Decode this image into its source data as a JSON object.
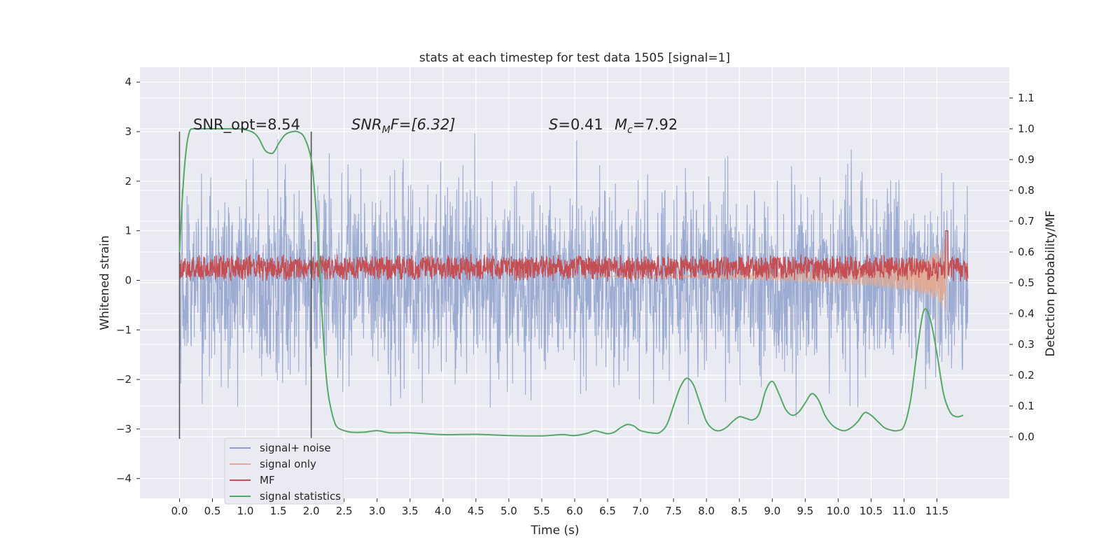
{
  "chart_data": {
    "type": "line",
    "title": "stats at each timestep for test data 1505 [signal=1]",
    "xlabel": "Time (s)",
    "ylabel": "Whitened strain",
    "ylabel_right": "Detection probability/MF",
    "xlim": [
      -0.6,
      12.6
    ],
    "ylim": [
      -4.4,
      4.3
    ],
    "ylim_right": [
      -0.2,
      1.2
    ],
    "x_ticks": [
      "0.0",
      "0.5",
      "1.0",
      "1.5",
      "2.0",
      "2.5",
      "3.0",
      "3.5",
      "4.0",
      "4.5",
      "5.0",
      "5.5",
      "6.0",
      "6.5",
      "7.0",
      "7.5",
      "8.0",
      "8.5",
      "9.0",
      "9.5",
      "10.0",
      "10.5",
      "11.0",
      "11.5"
    ],
    "y_ticks": [
      "4",
      "3",
      "2",
      "1",
      "0",
      "−1",
      "−2",
      "−3",
      "−4"
    ],
    "y_ticks_right": [
      "1.1",
      "1.0",
      "0.9",
      "0.8",
      "0.7",
      "0.6",
      "0.5",
      "0.4",
      "0.3",
      "0.2",
      "0.1",
      "0.0"
    ],
    "grid": true,
    "legend_position": "lower-left",
    "annotations": {
      "snr_opt": "SNR_opt=8.54",
      "snr_mf_base": "SNR",
      "snr_mf_sub": "M",
      "snr_mf_rest": "F=[6.32]",
      "spin_sym": "S",
      "spin_val": "=0.41",
      "mc_sym": "M",
      "mc_sub": "c",
      "mc_val": "=7.92"
    },
    "vlines_x": [
      0.0,
      2.0
    ],
    "series": [
      {
        "name": "signal+ noise",
        "color": "#8da0cb",
        "axis": "left",
        "description_range": [
          -3.0,
          3.0
        ]
      },
      {
        "name": "signal only",
        "color": "#e8a88c",
        "axis": "left",
        "envelope": {
          "x": [
            8.0,
            9.0,
            10.0,
            10.5,
            11.0,
            11.3,
            11.5,
            11.6,
            11.65
          ],
          "amp": [
            0.02,
            0.05,
            0.09,
            0.12,
            0.17,
            0.22,
            0.3,
            0.45,
            0.55
          ]
        }
      },
      {
        "name": "MF",
        "color": "#c44e52",
        "axis": "left",
        "mean": 0.25,
        "band": [
          0.05,
          0.5
        ],
        "peak": {
          "x": 11.65,
          "y": 1.0
        }
      },
      {
        "name": "signal statistics",
        "color": "#55a868",
        "axis": "right",
        "x": [
          0.0,
          0.05,
          0.1,
          0.15,
          0.2,
          0.3,
          0.5,
          0.7,
          0.9,
          1.1,
          1.2,
          1.3,
          1.4,
          1.45,
          1.5,
          1.6,
          1.7,
          1.8,
          1.9,
          2.0,
          2.05,
          2.1,
          2.15,
          2.2,
          2.25,
          2.3,
          2.35,
          2.4,
          2.5,
          2.6,
          2.8,
          3.0,
          3.2,
          3.5,
          4.0,
          4.5,
          5.0,
          5.5,
          5.8,
          6.0,
          6.2,
          6.3,
          6.4,
          6.5,
          6.6,
          6.7,
          6.8,
          6.9,
          7.0,
          7.2,
          7.3,
          7.4,
          7.5,
          7.6,
          7.7,
          7.8,
          7.9,
          8.0,
          8.1,
          8.2,
          8.3,
          8.4,
          8.5,
          8.6,
          8.7,
          8.8,
          8.9,
          9.0,
          9.1,
          9.2,
          9.3,
          9.4,
          9.5,
          9.6,
          9.7,
          9.8,
          9.9,
          10.0,
          10.1,
          10.2,
          10.3,
          10.4,
          10.5,
          10.6,
          10.7,
          10.8,
          10.9,
          11.0,
          11.1,
          11.2,
          11.3,
          11.4,
          11.5,
          11.6,
          11.7,
          11.8,
          11.9
        ],
        "y": [
          0.6,
          0.8,
          0.93,
          0.99,
          1.0,
          1.0,
          1.0,
          1.0,
          1.0,
          0.99,
          0.97,
          0.93,
          0.92,
          0.93,
          0.95,
          0.98,
          0.99,
          0.99,
          0.97,
          0.9,
          0.8,
          0.65,
          0.45,
          0.27,
          0.15,
          0.09,
          0.05,
          0.03,
          0.02,
          0.015,
          0.015,
          0.02,
          0.013,
          0.013,
          0.007,
          0.008,
          0.004,
          0.003,
          0.007,
          0.004,
          0.012,
          0.02,
          0.015,
          0.01,
          0.015,
          0.03,
          0.04,
          0.035,
          0.02,
          0.012,
          0.015,
          0.04,
          0.1,
          0.16,
          0.19,
          0.17,
          0.11,
          0.05,
          0.025,
          0.02,
          0.03,
          0.05,
          0.065,
          0.06,
          0.055,
          0.075,
          0.15,
          0.18,
          0.14,
          0.09,
          0.07,
          0.08,
          0.11,
          0.14,
          0.12,
          0.07,
          0.04,
          0.025,
          0.02,
          0.03,
          0.05,
          0.078,
          0.07,
          0.05,
          0.03,
          0.022,
          0.02,
          0.035,
          0.12,
          0.28,
          0.41,
          0.38,
          0.27,
          0.14,
          0.08,
          0.065,
          0.07
        ]
      }
    ]
  }
}
